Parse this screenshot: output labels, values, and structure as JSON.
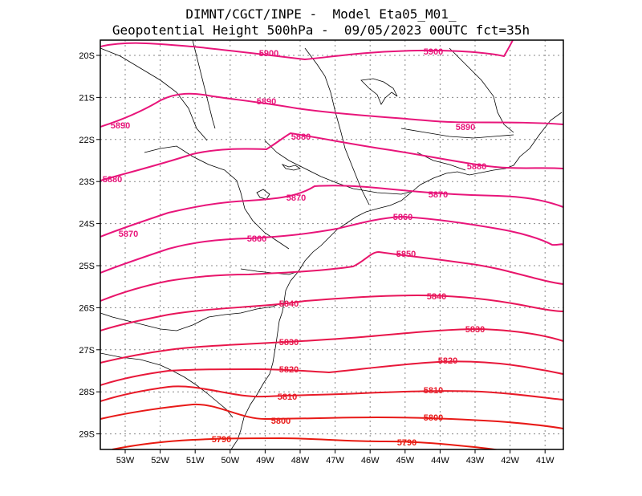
{
  "title": {
    "line1": "DIMNT/CGCT/INPE -  Model Eta05_M01_",
    "line2": "Geopotential Height 500hPa -  09/05/2023 00UTC fct=35h"
  },
  "axes": {
    "lat_labels": [
      "20S",
      "21S",
      "22S",
      "23S",
      "24S",
      "25S",
      "26S",
      "27S",
      "28S",
      "29S"
    ],
    "lon_labels": [
      "53W",
      "52W",
      "51W",
      "50W",
      "49W",
      "48W",
      "47W",
      "46W",
      "45W",
      "44W",
      "43W",
      "42W",
      "41W"
    ]
  },
  "colors": {
    "contour_high": "#e8157a",
    "contour_low": "#e81a10",
    "coastline": "#000000",
    "grid": "#888888"
  },
  "contours": [
    {
      "level": 5900,
      "labels": [
        "5900",
        "5900"
      ],
      "color": "#e8157a"
    },
    {
      "level": 5890,
      "labels": [
        "5890",
        "5890",
        "5890"
      ],
      "color": "#e8157a"
    },
    {
      "level": 5880,
      "labels": [
        "5880",
        "5880",
        "5880"
      ],
      "color": "#e8157a"
    },
    {
      "level": 5870,
      "labels": [
        "5870",
        "5870",
        "5870"
      ],
      "color": "#e8157a"
    },
    {
      "level": 5860,
      "labels": [
        "5860",
        "5860"
      ],
      "color": "#e8157a"
    },
    {
      "level": 5850,
      "labels": [
        "5850"
      ],
      "color": "#e8156a"
    },
    {
      "level": 5840,
      "labels": [
        "5840",
        "5840"
      ],
      "color": "#e8155a"
    },
    {
      "level": 5830,
      "labels": [
        "5830",
        "5830"
      ],
      "color": "#e8154a"
    },
    {
      "level": 5820,
      "labels": [
        "5820",
        "5820"
      ],
      "color": "#e8183a"
    },
    {
      "level": 5810,
      "labels": [
        "5810",
        "5810"
      ],
      "color": "#e81a28"
    },
    {
      "level": 5800,
      "labels": [
        "5800",
        "5800"
      ],
      "color": "#e81a18"
    },
    {
      "level": 5790,
      "labels": [
        "5790",
        "5790"
      ],
      "color": "#e81a10"
    }
  ]
}
